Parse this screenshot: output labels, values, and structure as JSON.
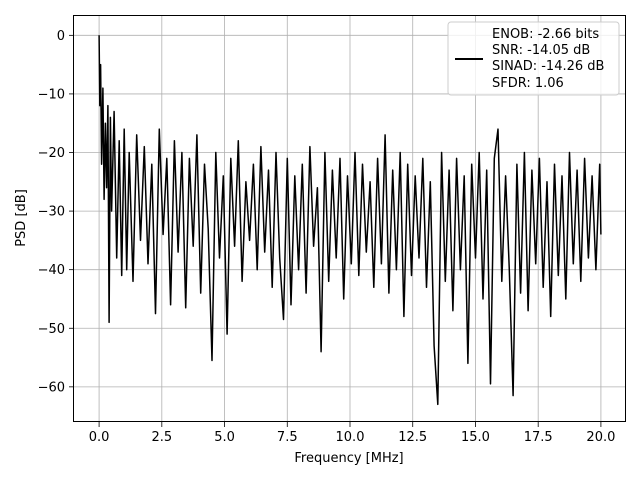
{
  "chart_data": {
    "type": "line",
    "title": "",
    "xlabel": "Frequency [MHz]",
    "ylabel": "PSD [dB]",
    "xlim": [
      -1.0,
      21.0
    ],
    "ylim": [
      -66.0,
      3.3
    ],
    "xticks": [
      0.0,
      2.5,
      5.0,
      7.5,
      10.0,
      12.5,
      15.0,
      17.5,
      20.0
    ],
    "xtick_labels": [
      "0.0",
      "2.5",
      "5.0",
      "7.5",
      "10.0",
      "12.5",
      "15.0",
      "17.5",
      "20.0"
    ],
    "yticks": [
      0,
      -10,
      -20,
      -30,
      -40,
      -50,
      -60
    ],
    "ytick_labels": [
      "0",
      "−10",
      "−20",
      "−30",
      "−40",
      "−50",
      "−60"
    ],
    "grid": true,
    "legend_position": "top-right",
    "legend_lines": [
      "ENOB: -2.66 bits",
      "SNR: -14.05 dB",
      "SINAD: -14.26 dB",
      "SFDR: 1.06"
    ],
    "series": [
      {
        "color": "#000000",
        "x": [
          0.0,
          0.03,
          0.06,
          0.1,
          0.15,
          0.2,
          0.25,
          0.3,
          0.35,
          0.4,
          0.45,
          0.5,
          0.6,
          0.7,
          0.8,
          0.9,
          1.0,
          1.1,
          1.2,
          1.35,
          1.5,
          1.65,
          1.8,
          1.95,
          2.1,
          2.25,
          2.4,
          2.55,
          2.7,
          2.85,
          3.0,
          3.15,
          3.3,
          3.45,
          3.6,
          3.75,
          3.9,
          4.05,
          4.2,
          4.35,
          4.5,
          4.65,
          4.8,
          4.95,
          5.1,
          5.25,
          5.4,
          5.55,
          5.7,
          5.85,
          6.0,
          6.15,
          6.3,
          6.45,
          6.6,
          6.75,
          6.9,
          7.05,
          7.2,
          7.35,
          7.5,
          7.65,
          7.8,
          7.95,
          8.1,
          8.25,
          8.4,
          8.55,
          8.7,
          8.85,
          9.0,
          9.15,
          9.3,
          9.45,
          9.6,
          9.75,
          9.9,
          10.05,
          10.2,
          10.35,
          10.5,
          10.65,
          10.8,
          10.95,
          11.1,
          11.25,
          11.4,
          11.55,
          11.7,
          11.85,
          12.0,
          12.15,
          12.3,
          12.45,
          12.6,
          12.75,
          12.9,
          13.05,
          13.2,
          13.35,
          13.5,
          13.65,
          13.8,
          13.95,
          14.1,
          14.25,
          14.4,
          14.55,
          14.7,
          14.85,
          15.0,
          15.15,
          15.3,
          15.45,
          15.6,
          15.75,
          15.9,
          16.05,
          16.2,
          16.35,
          16.5,
          16.65,
          16.8,
          16.95,
          17.1,
          17.25,
          17.4,
          17.55,
          17.7,
          17.85,
          18.0,
          18.15,
          18.3,
          18.45,
          18.6,
          18.75,
          18.9,
          19.05,
          19.2,
          19.35,
          19.5,
          19.65,
          19.8,
          19.95,
          20.0
        ],
        "y": [
          0.0,
          -12.0,
          -5.0,
          -22.0,
          -9.0,
          -28.0,
          -15.0,
          -26.0,
          -12.0,
          -49.0,
          -14.0,
          -30.0,
          -13.0,
          -38.0,
          -18.0,
          -41.0,
          -16.0,
          -40.0,
          -20.0,
          -42.0,
          -17.0,
          -35.0,
          -19.0,
          -39.0,
          -22.0,
          -47.5,
          -16.0,
          -34.0,
          -21.0,
          -46.0,
          -18.0,
          -37.0,
          -20.0,
          -46.5,
          -21.0,
          -36.0,
          -17.0,
          -44.0,
          -22.0,
          -33.0,
          -55.5,
          -20.0,
          -38.0,
          -24.0,
          -51.0,
          -21.0,
          -36.0,
          -18.0,
          -42.0,
          -25.0,
          -35.0,
          -22.0,
          -40.0,
          -19.0,
          -37.0,
          -23.0,
          -43.0,
          -20.0,
          -38.0,
          -48.5,
          -21.0,
          -46.0,
          -24.0,
          -40.0,
          -22.0,
          -44.0,
          -19.0,
          -36.0,
          -26.0,
          -54.0,
          -20.0,
          -42.0,
          -23.0,
          -38.0,
          -21.0,
          -45.0,
          -24.0,
          -39.0,
          -20.0,
          -41.0,
          -22.0,
          -37.0,
          -25.0,
          -43.0,
          -21.0,
          -39.0,
          -17.0,
          -44.0,
          -23.0,
          -40.0,
          -20.0,
          -48.0,
          -22.0,
          -41.0,
          -24.0,
          -38.0,
          -21.0,
          -43.0,
          -25.0,
          -53.0,
          -63.0,
          -20.0,
          -42.0,
          -23.0,
          -47.0,
          -21.0,
          -40.0,
          -24.0,
          -56.0,
          -22.0,
          -38.0,
          -20.0,
          -45.0,
          -23.0,
          -59.5,
          -21.0,
          -16.0,
          -42.0,
          -24.0,
          -40.0,
          -61.5,
          -22.0,
          -44.0,
          -20.0,
          -47.0,
          -23.0,
          -39.0,
          -21.0,
          -43.0,
          -25.0,
          -48.0,
          -22.0,
          -41.0,
          -24.0,
          -45.0,
          -20.0,
          -39.0,
          -23.0,
          -42.0,
          -21.0,
          -38.0,
          -24.0,
          -40.0,
          -22.0,
          -34.0
        ]
      }
    ]
  }
}
